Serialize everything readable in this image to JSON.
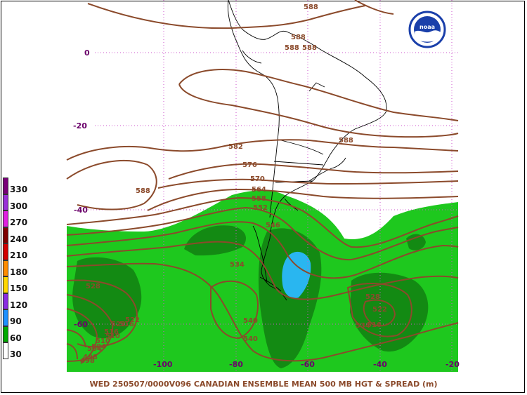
{
  "title": "WED 250507/0000V096  CANADIAN ENSEMBLE MEAN 500 MB HGT & SPREAD (m)",
  "logo_text": "noaa",
  "legend": {
    "levels": [
      {
        "label": "330",
        "color": "#7a0079"
      },
      {
        "label": "300",
        "color": "#9b30d8"
      },
      {
        "label": "270",
        "color": "#e020e0"
      },
      {
        "label": "240",
        "color": "#800000"
      },
      {
        "label": "210",
        "color": "#d40000"
      },
      {
        "label": "180",
        "color": "#ff8c00"
      },
      {
        "label": "150",
        "color": "#ffd700"
      },
      {
        "label": "120",
        "color": "#8b2be2"
      },
      {
        "label": "90",
        "color": "#1e90ff"
      },
      {
        "label": "60",
        "color": "#00aa00"
      },
      {
        "label": "30",
        "color": "#ffffff"
      }
    ]
  },
  "latitude_labels": [
    "0",
    "-20",
    "-40",
    "-60"
  ],
  "longitude_labels": [
    "-100",
    "-80",
    "-60",
    "-40",
    "-20"
  ],
  "contour_labels": [
    "588",
    "588",
    "588",
    "588",
    "588",
    "582",
    "576",
    "570",
    "564",
    "558",
    "552",
    "546",
    "540",
    "534",
    "528",
    "522",
    "516",
    "510",
    "504",
    "498",
    "522",
    "516",
    "534",
    "540",
    "528",
    "522",
    "588",
    "516",
    "510",
    "504",
    "498"
  ],
  "colors": {
    "contour": "#8b4a2b",
    "grid": "#cc55cc",
    "spread_light": "#1ec81e",
    "spread_dark": "#138a13",
    "spread_blue": "#29b6f0",
    "coast": "#000000"
  }
}
